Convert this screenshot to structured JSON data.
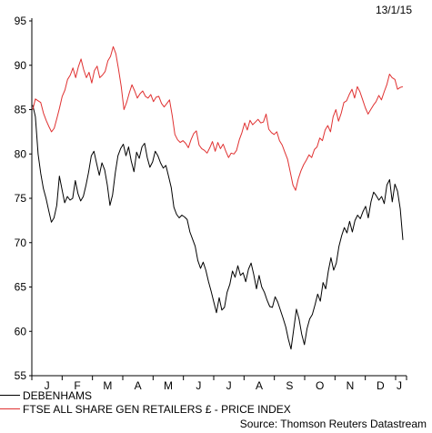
{
  "date_stamp": "13/1/15",
  "source": "Source: Thomson Reuters Datastream",
  "chart_data": {
    "type": "line",
    "y_ticks": [
      "95",
      "90",
      "85",
      "80",
      "75",
      "70",
      "65",
      "60",
      "55"
    ],
    "ylim": [
      55,
      95
    ],
    "x_tick_labels": [
      "J",
      "F",
      "M",
      "A",
      "M",
      "J",
      "J",
      "A",
      "S",
      "O",
      "N",
      "D",
      "J"
    ],
    "grid": false,
    "legend_placement": "bottom-left",
    "series": [
      {
        "name": "DEBENHAMS",
        "color": "#000000",
        "values": [
          85.5,
          84.2,
          80.0,
          77.8,
          76.1,
          75.0,
          73.6,
          72.3,
          72.8,
          74.2,
          77.5,
          76.0,
          74.5,
          75.2,
          74.8,
          75.0,
          77.0,
          75.5,
          74.7,
          75.2,
          76.5,
          78.0,
          79.8,
          80.3,
          78.9,
          77.6,
          79.0,
          78.2,
          76.5,
          74.2,
          75.4,
          77.9,
          79.8,
          80.6,
          81.1,
          79.8,
          80.8,
          79.2,
          78.0,
          80.2,
          79.5,
          80.8,
          81.2,
          79.6,
          78.5,
          79.1,
          80.3,
          79.8,
          79.0,
          78.4,
          78.7,
          77.5,
          76.2,
          74.0,
          73.2,
          72.8,
          73.1,
          72.9,
          72.6,
          71.2,
          70.4,
          69.6,
          68.0,
          67.1,
          67.8,
          66.9,
          65.6,
          64.5,
          63.3,
          62.1,
          63.8,
          62.4,
          62.7,
          64.4,
          65.3,
          66.8,
          66.1,
          67.4,
          66.3,
          66.6,
          65.6,
          67.0,
          67.7,
          66.4,
          64.8,
          66.3,
          65.0,
          64.4,
          63.5,
          62.8,
          62.7,
          63.9,
          63.3,
          62.4,
          61.5,
          60.5,
          59.1,
          58.0,
          60.2,
          62.5,
          61.4,
          59.7,
          58.5,
          60.3,
          61.4,
          61.9,
          63.0,
          64.2,
          63.4,
          65.5,
          64.8,
          66.8,
          68.3,
          66.9,
          67.7,
          69.6,
          70.8,
          71.7,
          71.1,
          72.4,
          71.2,
          72.5,
          73.1,
          72.7,
          73.5,
          74.1,
          72.8,
          74.6,
          75.7,
          75.3,
          74.8,
          75.2,
          74.4,
          76.5,
          77.1,
          74.6,
          76.6,
          75.8,
          73.8,
          70.3
        ]
      },
      {
        "name": "FTSE ALL SHARE GEN RETAILERS £ - PRICE INDEX",
        "color": "#e03131",
        "values": [
          85.0,
          86.2,
          86.0,
          85.8,
          84.6,
          83.8,
          83.1,
          82.5,
          82.9,
          84.0,
          85.2,
          86.5,
          87.2,
          88.4,
          88.9,
          89.7,
          88.6,
          89.8,
          90.7,
          89.5,
          88.6,
          89.2,
          88.0,
          89.4,
          89.9,
          88.6,
          88.9,
          89.3,
          90.5,
          91.0,
          92.1,
          91.3,
          89.5,
          87.6,
          85.0,
          85.8,
          86.9,
          87.8,
          87.1,
          86.3,
          86.8,
          87.1,
          86.5,
          86.3,
          86.7,
          85.9,
          86.4,
          86.5,
          85.7,
          85.3,
          85.7,
          86.1,
          84.3,
          82.2,
          81.6,
          81.3,
          81.5,
          81.2,
          80.7,
          81.6,
          82.3,
          82.6,
          81.0,
          80.6,
          80.4,
          80.1,
          80.7,
          81.4,
          80.3,
          81.3,
          80.6,
          81.1,
          80.3,
          79.6,
          80.1,
          80.0,
          80.4,
          81.6,
          82.4,
          83.5,
          82.7,
          83.8,
          83.3,
          83.6,
          83.9,
          83.5,
          83.6,
          84.5,
          82.8,
          82.4,
          82.2,
          82.5,
          81.5,
          81.0,
          80.2,
          79.4,
          78.0,
          76.5,
          75.9,
          77.2,
          78.1,
          78.8,
          79.3,
          79.9,
          79.6,
          80.5,
          80.8,
          81.8,
          81.5,
          82.7,
          83.2,
          82.5,
          84.2,
          85.0,
          83.7,
          84.6,
          85.8,
          86.0,
          86.7,
          87.3,
          86.3,
          87.6,
          87.0,
          86.1,
          85.2,
          84.5,
          85.0,
          85.5,
          85.9,
          86.6,
          86.1,
          87.0,
          87.8,
          89.0,
          88.6,
          88.4,
          87.3,
          87.5,
          87.6
        ]
      }
    ]
  }
}
